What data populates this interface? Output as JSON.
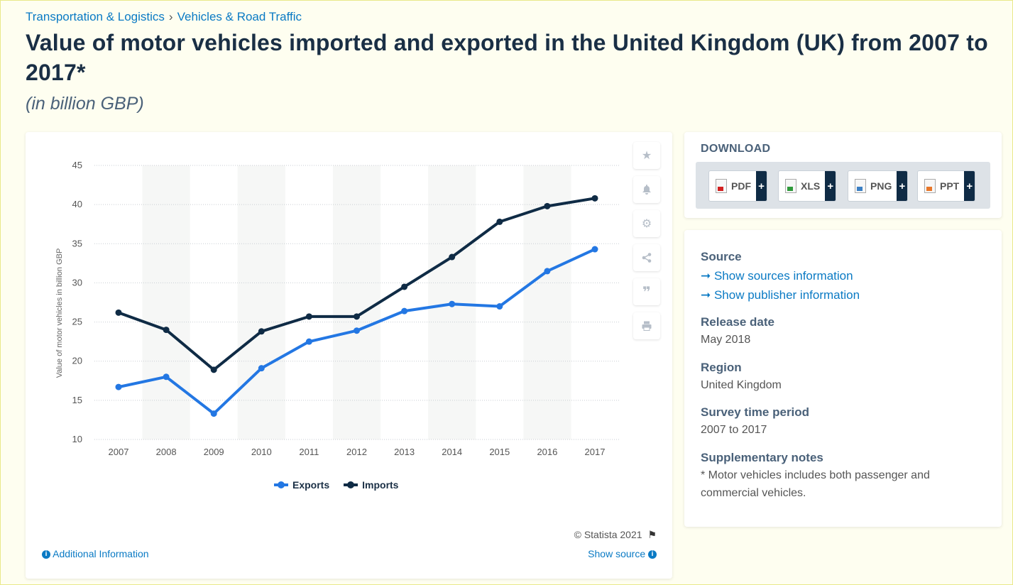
{
  "breadcrumb": {
    "items": [
      "Transportation & Logistics",
      "Vehicles & Road Traffic"
    ],
    "separator": "›"
  },
  "title": "Value of motor vehicles imported and exported in the United Kingdom (UK) from 2007 to 2017*",
  "subtitle": "(in billion GBP)",
  "chart_data": {
    "type": "line",
    "x": [
      "2007",
      "2008",
      "2009",
      "2010",
      "2011",
      "2012",
      "2013",
      "2014",
      "2015",
      "2016",
      "2017"
    ],
    "series": [
      {
        "name": "Exports",
        "color": "#2377e3",
        "values": [
          16.7,
          18.0,
          13.3,
          19.1,
          22.5,
          23.9,
          26.4,
          27.3,
          27.0,
          31.5,
          34.3
        ]
      },
      {
        "name": "Imports",
        "color": "#0f2b45",
        "values": [
          26.2,
          24.0,
          18.9,
          23.8,
          25.7,
          25.7,
          29.5,
          33.3,
          37.8,
          39.8,
          40.8
        ]
      }
    ],
    "ylabel": "Value of motor vehicles in billion GBP",
    "ylim": [
      10,
      45
    ],
    "yticks": [
      "10",
      "15",
      "20",
      "25",
      "30",
      "35",
      "40",
      "45"
    ],
    "grid": true
  },
  "legend": {
    "exports": "Exports",
    "imports": "Imports"
  },
  "toolbar": {
    "icons": [
      "star-icon",
      "bell-icon",
      "gear-icon",
      "share-icon",
      "quote-icon",
      "print-icon"
    ]
  },
  "footer": {
    "copyright": "© Statista 2021",
    "additional_info": "Additional Information",
    "show_source": "Show source"
  },
  "download": {
    "heading": "DOWNLOAD",
    "formats": [
      {
        "label": "PDF",
        "color": "#d32020"
      },
      {
        "label": "XLS",
        "color": "#2f9a3b"
      },
      {
        "label": "PNG",
        "color": "#3b7fc4"
      },
      {
        "label": "PPT",
        "color": "#e8772a"
      }
    ],
    "plus": "+"
  },
  "meta": {
    "source_heading": "Source",
    "sources_link": "➞ Show sources information",
    "publisher_link": "➞ Show publisher information",
    "release_heading": "Release date",
    "release_value": "May 2018",
    "region_heading": "Region",
    "region_value": "United Kingdom",
    "period_heading": "Survey time period",
    "period_value": "2007 to 2017",
    "notes_heading": "Supplementary notes",
    "notes_value": "* Motor vehicles includes both passenger and commercial vehicles."
  }
}
